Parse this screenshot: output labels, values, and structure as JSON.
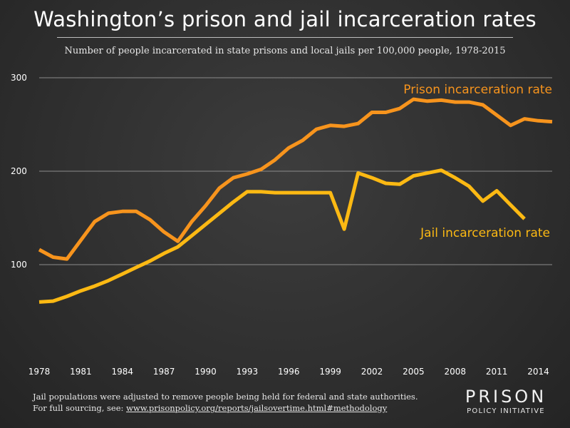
{
  "title": "Washington’s prison and jail incarceration rates",
  "subtitle": "Number of people incarcerated in state prisons and local jails per 100,000 people, 1978-2015",
  "footnote": {
    "line1": "Jail populations were adjusted to remove people being held for federal and state authorities.",
    "line2_prefix": "For full sourcing, see: ",
    "link_text": "www.prisonpolicy.org/reports/jailsovertime.html#methodology"
  },
  "logo": {
    "top": "PRISON",
    "bottom": "POLICY INITIATIVE"
  },
  "chart_data": {
    "type": "line",
    "xlim": [
      1978,
      2015
    ],
    "ylim": [
      0,
      300
    ],
    "grid": true,
    "x_ticks": [
      "1978",
      "1981",
      "1984",
      "1987",
      "1990",
      "1993",
      "1996",
      "1999",
      "2002",
      "2005",
      "2008",
      "2011",
      "2014"
    ],
    "y_ticks": [
      "100",
      "200",
      "300"
    ],
    "series": [
      {
        "name": "Prison incarceration rate",
        "color": "#f7941d",
        "x": [
          1978,
          1979,
          1980,
          1981,
          1982,
          1983,
          1984,
          1985,
          1986,
          1987,
          1988,
          1989,
          1990,
          1991,
          1992,
          1993,
          1994,
          1995,
          1996,
          1997,
          1998,
          1999,
          2000,
          2001,
          2002,
          2003,
          2004,
          2005,
          2006,
          2007,
          2008,
          2009,
          2010,
          2011,
          2012,
          2013,
          2014,
          2015
        ],
        "values": [
          116,
          108,
          106,
          126,
          146,
          155,
          157,
          157,
          148,
          135,
          125,
          146,
          163,
          182,
          193,
          197,
          202,
          212,
          225,
          233,
          245,
          249,
          248,
          251,
          263,
          263,
          267,
          277,
          275,
          276,
          274,
          274,
          271,
          260,
          249,
          256,
          254,
          253
        ]
      },
      {
        "name": "Jail incarceration rate",
        "color": "#fcb913",
        "x": [
          1978,
          1979,
          1980,
          1981,
          1982,
          1983,
          1984,
          1985,
          1986,
          1987,
          1988,
          1989,
          1990,
          1991,
          1992,
          1993,
          1994,
          1995,
          1996,
          1997,
          1998,
          1999,
          2000,
          2001,
          2002,
          2003,
          2004,
          2005,
          2006,
          2007,
          2008,
          2009,
          2010,
          2011,
          2012,
          2013
        ],
        "values": [
          60,
          61,
          66,
          72,
          77,
          83,
          90,
          97,
          104,
          112,
          119,
          131,
          143,
          155,
          167,
          178,
          178,
          177,
          177,
          177,
          177,
          177,
          138,
          198,
          193,
          187,
          186,
          195,
          198,
          201,
          193,
          184,
          168,
          179,
          164,
          149
        ]
      }
    ]
  }
}
